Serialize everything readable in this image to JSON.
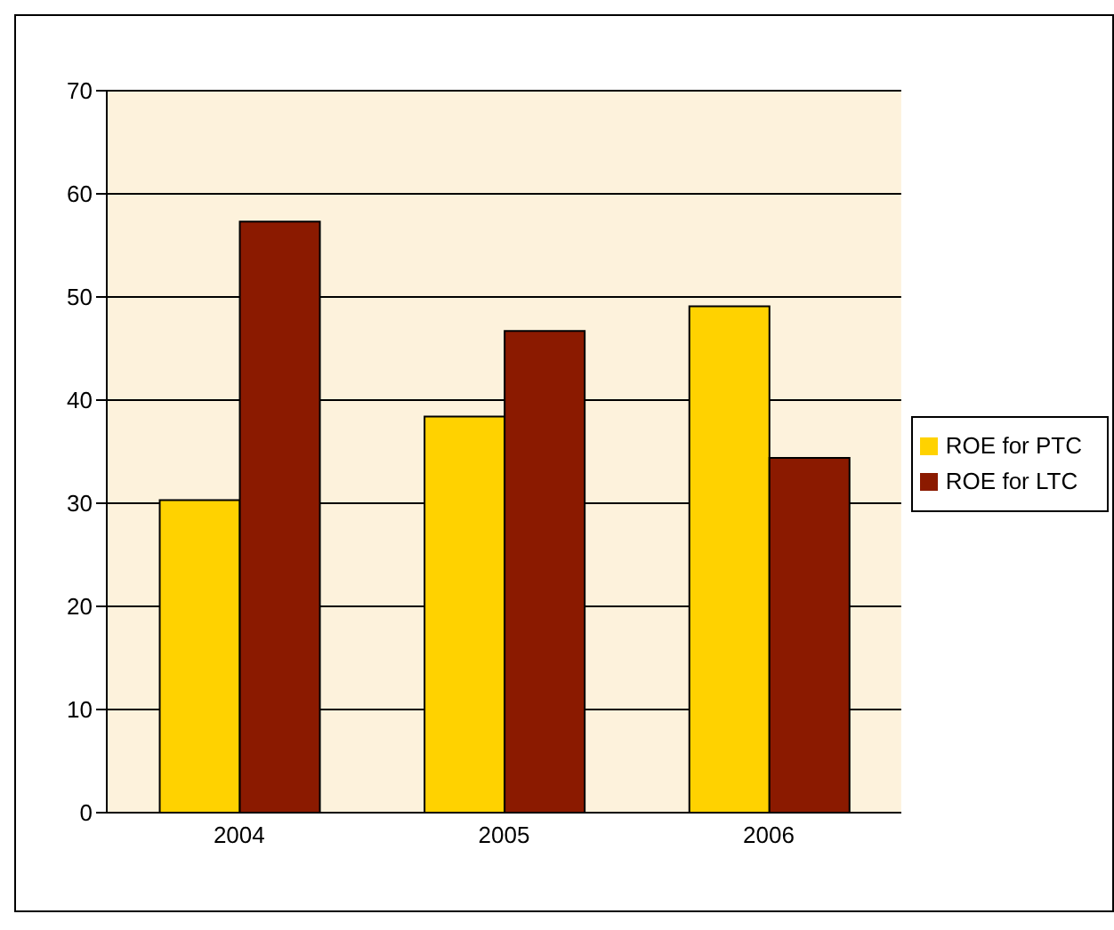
{
  "chart_data": {
    "type": "bar",
    "categories": [
      "2004",
      "2005",
      "2006"
    ],
    "series": [
      {
        "name": "ROE for PTC",
        "color": "#ffd200",
        "values": [
          30.3,
          38.4,
          49.1
        ]
      },
      {
        "name": "ROE for LTC",
        "color": "#8b1a00",
        "values": [
          57.3,
          46.7,
          34.4
        ]
      }
    ],
    "ylim": [
      0,
      70
    ],
    "yticks": [
      0,
      10,
      20,
      30,
      40,
      50,
      60,
      70
    ],
    "grid": "y",
    "legend": "right"
  }
}
